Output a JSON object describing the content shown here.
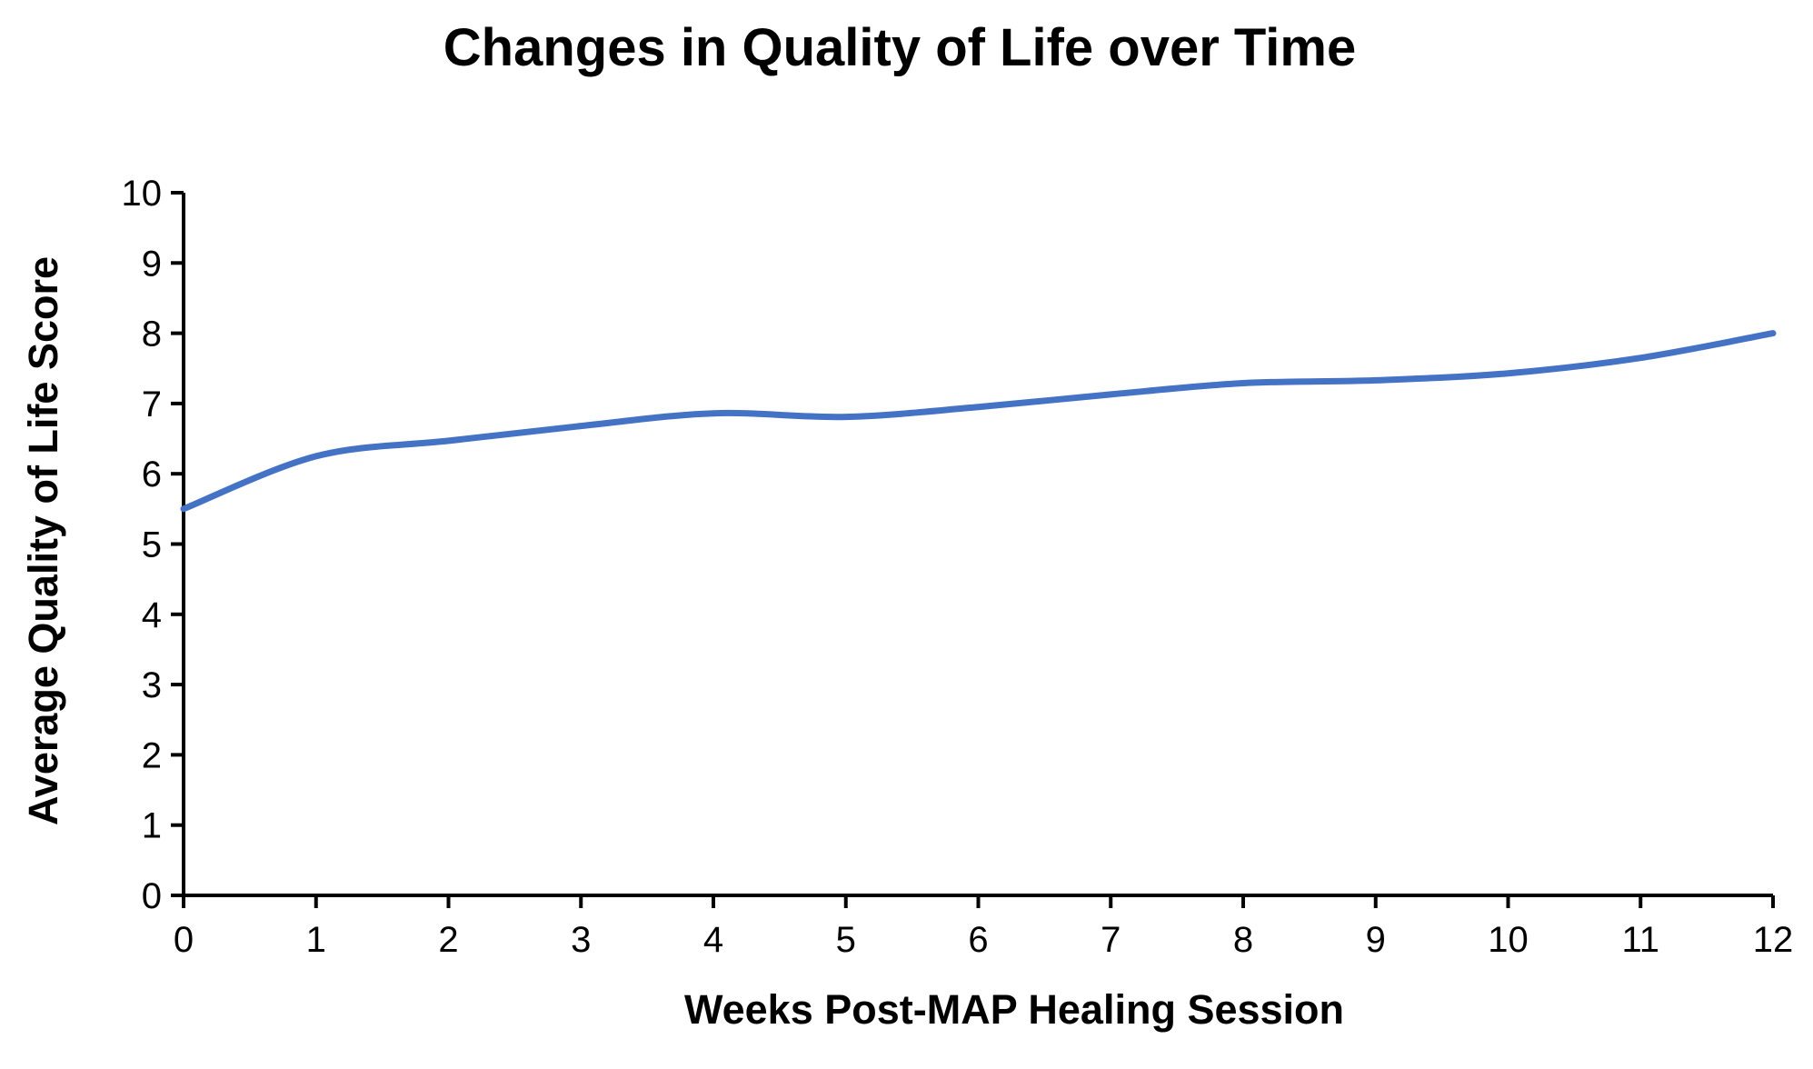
{
  "chart_data": {
    "type": "line",
    "title": "Changes in Quality of Life over Time",
    "xlabel": "Weeks Post-MAP Healing Session",
    "ylabel": "Average Quality of Life Score",
    "xlim": [
      0,
      12
    ],
    "ylim": [
      0,
      10
    ],
    "x_ticks": [
      "0",
      "1",
      "2",
      "3",
      "4",
      "5",
      "6",
      "7",
      "8",
      "9",
      "10",
      "11",
      "12"
    ],
    "y_ticks": [
      "0",
      "1",
      "2",
      "3",
      "4",
      "5",
      "6",
      "7",
      "8",
      "9",
      "10"
    ],
    "grid": false,
    "legend": "none",
    "series": [
      {
        "color": "#4472C4",
        "smooth": true,
        "x": [
          0,
          1,
          2,
          3,
          4,
          5,
          6,
          7,
          8,
          9,
          10,
          11,
          12
        ],
        "values": [
          5.5,
          6.25,
          6.47,
          6.68,
          6.86,
          6.81,
          6.95,
          7.13,
          7.29,
          7.33,
          7.43,
          7.65,
          8.0
        ]
      }
    ]
  }
}
